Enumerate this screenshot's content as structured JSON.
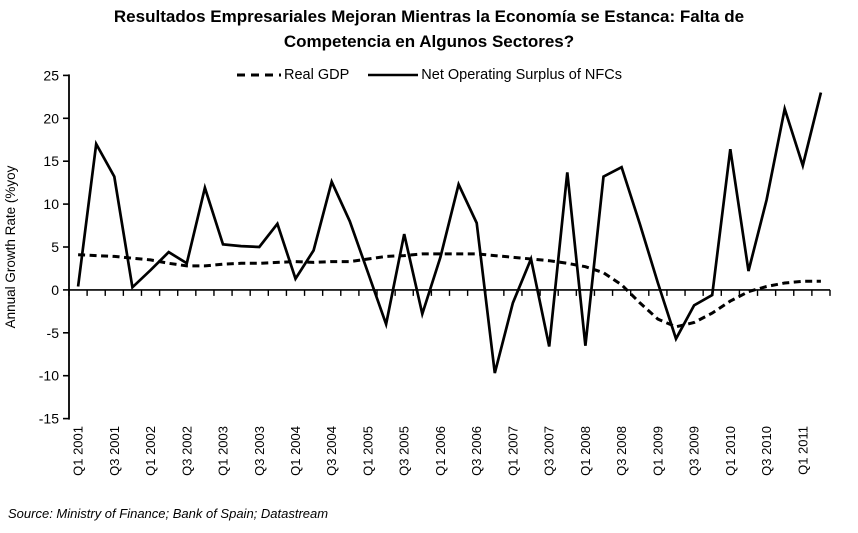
{
  "title": {
    "line1": "Resultados Empresariales Mejoran Mientras la Economía se Estanca: Falta de",
    "line2": "Competencia en Algunos Sectores?"
  },
  "legend": {
    "real_gdp": "Real GDP",
    "nos": "Net Operating Surplus of NFCs"
  },
  "y_axis": {
    "label": "Annual Growth Rate (%yoy"
  },
  "source": "Source: Ministry of Finance; Bank of Spain; Datastream",
  "chart_data": {
    "type": "line",
    "title": "Resultados Empresariales Mejoran Mientras la Economía se Estanca: Falta de Competencia en Algunos Sectores?",
    "ylabel": "Annual Growth Rate (%yoy",
    "xlabel": "",
    "ylim": [
      -15,
      25
    ],
    "y_ticks": [
      -15,
      -10,
      -5,
      0,
      5,
      10,
      15,
      20,
      25
    ],
    "grid": false,
    "legend_position": "top",
    "x": [
      "Q1 2001",
      "Q2 2001",
      "Q3 2001",
      "Q4 2001",
      "Q1 2002",
      "Q2 2002",
      "Q3 2002",
      "Q4 2002",
      "Q1 2003",
      "Q2 2003",
      "Q3 2003",
      "Q4 2003",
      "Q1 2004",
      "Q2 2004",
      "Q3 2004",
      "Q4 2004",
      "Q1 2005",
      "Q2 2005",
      "Q3 2005",
      "Q4 2005",
      "Q1 2006",
      "Q2 2006",
      "Q3 2006",
      "Q4 2006",
      "Q1 2007",
      "Q2 2007",
      "Q3 2007",
      "Q4 2007",
      "Q1 2008",
      "Q2 2008",
      "Q3 2008",
      "Q4 2008",
      "Q1 2009",
      "Q2 2009",
      "Q3 2009",
      "Q4 2009",
      "Q1 2010",
      "Q2 2010",
      "Q3 2010",
      "Q4 2010",
      "Q1 2011",
      "Q2 2011"
    ],
    "x_tick_labels": [
      "Q1 2001",
      "Q3 2001",
      "Q1 2002",
      "Q3 2002",
      "Q1 2003",
      "Q3 2003",
      "Q1 2004",
      "Q3 2004",
      "Q1 2005",
      "Q3 2005",
      "Q1 2006",
      "Q3 2006",
      "Q1 2007",
      "Q3 2007",
      "Q1 2008",
      "Q3 2008",
      "Q1 2009",
      "Q3 2009",
      "Q1 2010",
      "Q3 2010",
      "Q1 2011"
    ],
    "series": [
      {
        "name": "Real GDP",
        "style": "dashed",
        "values": [
          4.1,
          4.0,
          3.9,
          3.7,
          3.5,
          3.1,
          2.8,
          2.8,
          3.0,
          3.1,
          3.1,
          3.2,
          3.3,
          3.2,
          3.3,
          3.3,
          3.6,
          3.9,
          4.0,
          4.2,
          4.2,
          4.2,
          4.2,
          4.0,
          3.8,
          3.6,
          3.4,
          3.1,
          2.7,
          2.0,
          0.6,
          -1.5,
          -3.4,
          -4.3,
          -3.8,
          -2.7,
          -1.3,
          -0.2,
          0.4,
          0.8,
          1.0,
          1.0
        ]
      },
      {
        "name": "Net Operating Surplus of NFCs",
        "style": "solid",
        "values": [
          0.4,
          17.0,
          13.2,
          0.3,
          2.3,
          4.4,
          3.1,
          11.9,
          5.3,
          5.1,
          5.0,
          7.7,
          1.3,
          4.6,
          12.6,
          8.0,
          2.0,
          -4.0,
          6.5,
          -2.8,
          3.8,
          12.3,
          7.8,
          -9.7,
          -1.5,
          3.6,
          -6.6,
          13.7,
          -6.5,
          13.2,
          14.3,
          7.7,
          0.8,
          -5.7,
          -1.8,
          -0.6,
          16.4,
          2.2,
          10.5,
          21.1,
          14.5,
          23.0
        ]
      }
    ]
  }
}
